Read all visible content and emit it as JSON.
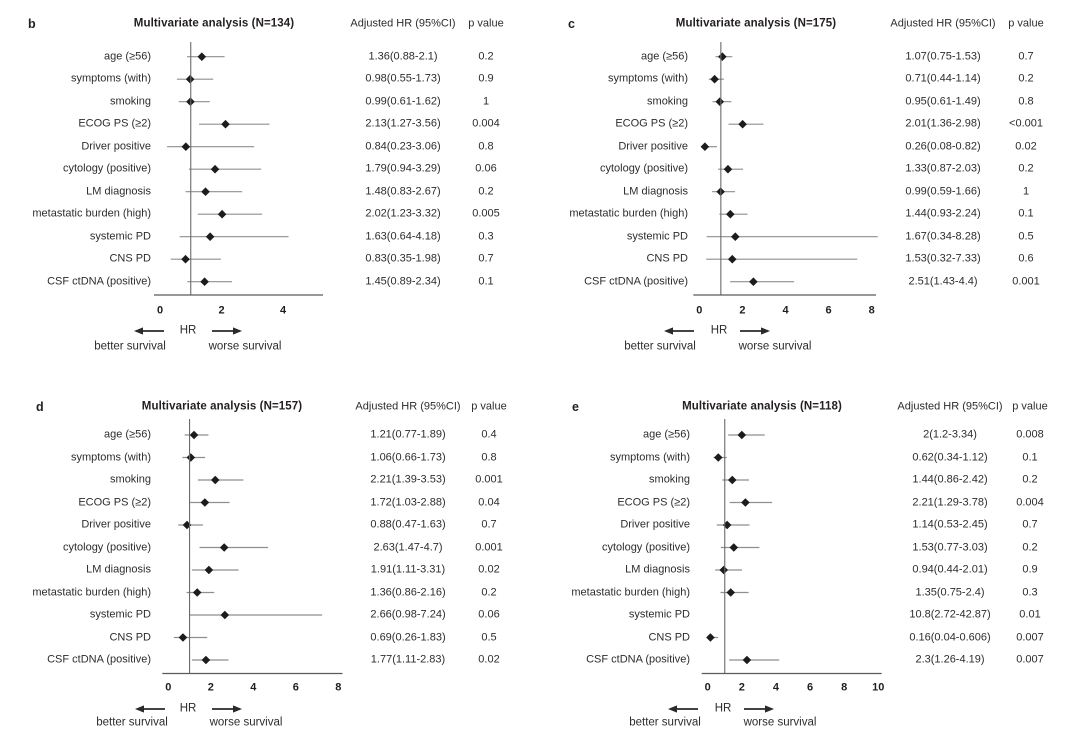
{
  "colors": {
    "background": "#ffffff",
    "ink": "#231f20",
    "ci_line": "#8f8f8f",
    "axis_line": "#5a5a5a",
    "ref_line": "#6a6a6a",
    "marker": "#1c1c1c",
    "arrow": "#2a2a2a"
  },
  "chart_data": [
    {
      "type": "forest",
      "panel_letter": "b",
      "title": "Multivariate analysis (N=134)",
      "hr_header": "Adjusted HR (95%CI)",
      "p_header": "p value",
      "xlabel": "HR",
      "arrow_left_label": "better survival",
      "arrow_right_label": "worse survival",
      "ref_line": 1,
      "x_ticks": [
        0,
        2,
        4
      ],
      "xlim": [
        0,
        5.3
      ],
      "rows": [
        {
          "label": "age (≥56)",
          "hr": 1.36,
          "lo": 0.88,
          "hi": 2.1,
          "hr_text": "1.36(0.88-2.1)",
          "p": "0.2"
        },
        {
          "label": "symptoms (with)",
          "hr": 0.98,
          "lo": 0.55,
          "hi": 1.73,
          "hr_text": "0.98(0.55-1.73)",
          "p": "0.9"
        },
        {
          "label": "smoking",
          "hr": 0.99,
          "lo": 0.61,
          "hi": 1.62,
          "hr_text": "0.99(0.61-1.62)",
          "p": "1"
        },
        {
          "label": "ECOG PS (≥2)",
          "hr": 2.13,
          "lo": 1.27,
          "hi": 3.56,
          "hr_text": "2.13(1.27-3.56)",
          "p": "0.004"
        },
        {
          "label": "Driver positive",
          "hr": 0.84,
          "lo": 0.23,
          "hi": 3.06,
          "hr_text": "0.84(0.23-3.06)",
          "p": "0.8"
        },
        {
          "label": "cytology (positive)",
          "hr": 1.79,
          "lo": 0.94,
          "hi": 3.29,
          "hr_text": "1.79(0.94-3.29)",
          "p": "0.06"
        },
        {
          "label": "LM diagnosis",
          "hr": 1.48,
          "lo": 0.83,
          "hi": 2.67,
          "hr_text": "1.48(0.83-2.67)",
          "p": "0.2"
        },
        {
          "label": "metastatic burden (high)",
          "hr": 2.02,
          "lo": 1.23,
          "hi": 3.32,
          "hr_text": "2.02(1.23-3.32)",
          "p": "0.005"
        },
        {
          "label": "systemic PD",
          "hr": 1.63,
          "lo": 0.64,
          "hi": 4.18,
          "hr_text": "1.63(0.64-4.18)",
          "p": "0.3"
        },
        {
          "label": "CNS PD",
          "hr": 0.83,
          "lo": 0.35,
          "hi": 1.98,
          "hr_text": "0.83(0.35-1.98)",
          "p": "0.7"
        },
        {
          "label": "CSF ctDNA (positive)",
          "hr": 1.45,
          "lo": 0.89,
          "hi": 2.34,
          "hr_text": "1.45(0.89-2.34)",
          "p": "0.1"
        }
      ]
    },
    {
      "type": "forest",
      "panel_letter": "c",
      "title": "Multivariate analysis (N=175)",
      "hr_header": "Adjusted HR (95%CI)",
      "p_header": "p value",
      "xlabel": "HR",
      "arrow_left_label": "better survival",
      "arrow_right_label": "worse survival",
      "ref_line": 1,
      "x_ticks": [
        0,
        2,
        4,
        6,
        8
      ],
      "xlim": [
        0,
        8.2
      ],
      "rows": [
        {
          "label": "age (≥56)",
          "hr": 1.07,
          "lo": 0.75,
          "hi": 1.53,
          "hr_text": "1.07(0.75-1.53)",
          "p": "0.7"
        },
        {
          "label": "symptoms (with)",
          "hr": 0.71,
          "lo": 0.44,
          "hi": 1.14,
          "hr_text": "0.71(0.44-1.14)",
          "p": "0.2"
        },
        {
          "label": "smoking",
          "hr": 0.95,
          "lo": 0.61,
          "hi": 1.49,
          "hr_text": "0.95(0.61-1.49)",
          "p": "0.8"
        },
        {
          "label": "ECOG PS (≥2)",
          "hr": 2.01,
          "lo": 1.36,
          "hi": 2.98,
          "hr_text": "2.01(1.36-2.98)",
          "p": "<0.001"
        },
        {
          "label": "Driver positive",
          "hr": 0.26,
          "lo": 0.08,
          "hi": 0.82,
          "hr_text": "0.26(0.08-0.82)",
          "p": "0.02"
        },
        {
          "label": "cytology (positive)",
          "hr": 1.33,
          "lo": 0.87,
          "hi": 2.03,
          "hr_text": "1.33(0.87-2.03)",
          "p": "0.2"
        },
        {
          "label": "LM diagnosis",
          "hr": 0.99,
          "lo": 0.59,
          "hi": 1.66,
          "hr_text": "0.99(0.59-1.66)",
          "p": "1"
        },
        {
          "label": "metastatic burden (high)",
          "hr": 1.44,
          "lo": 0.93,
          "hi": 2.24,
          "hr_text": "1.44(0.93-2.24)",
          "p": "0.1"
        },
        {
          "label": "systemic PD",
          "hr": 1.67,
          "lo": 0.34,
          "hi": 8.28,
          "hr_text": "1.67(0.34-8.28)",
          "p": "0.5"
        },
        {
          "label": "CNS PD",
          "hr": 1.53,
          "lo": 0.32,
          "hi": 7.33,
          "hr_text": "1.53(0.32-7.33)",
          "p": "0.6"
        },
        {
          "label": "CSF ctDNA (positive)",
          "hr": 2.51,
          "lo": 1.43,
          "hi": 4.4,
          "hr_text": "2.51(1.43-4.4)",
          "p": "0.001"
        }
      ]
    },
    {
      "type": "forest",
      "panel_letter": "d",
      "title": "Multivariate analysis (N=157)",
      "hr_header": "Adjusted HR (95%CI)",
      "p_header": "p value",
      "xlabel": "HR",
      "arrow_left_label": "better survival",
      "arrow_right_label": "worse survival",
      "ref_line": 1,
      "x_ticks": [
        0,
        2,
        4,
        6,
        8
      ],
      "xlim": [
        0,
        8.2
      ],
      "rows": [
        {
          "label": "age (≥56)",
          "hr": 1.21,
          "lo": 0.77,
          "hi": 1.89,
          "hr_text": "1.21(0.77-1.89)",
          "p": "0.4"
        },
        {
          "label": "symptoms (with)",
          "hr": 1.06,
          "lo": 0.66,
          "hi": 1.73,
          "hr_text": "1.06(0.66-1.73)",
          "p": "0.8"
        },
        {
          "label": "smoking",
          "hr": 2.21,
          "lo": 1.39,
          "hi": 3.53,
          "hr_text": "2.21(1.39-3.53)",
          "p": "0.001"
        },
        {
          "label": "ECOG PS (≥2)",
          "hr": 1.72,
          "lo": 1.03,
          "hi": 2.88,
          "hr_text": "1.72(1.03-2.88)",
          "p": "0.04"
        },
        {
          "label": "Driver positive",
          "hr": 0.88,
          "lo": 0.47,
          "hi": 1.63,
          "hr_text": "0.88(0.47-1.63)",
          "p": "0.7"
        },
        {
          "label": "cytology (positive)",
          "hr": 2.63,
          "lo": 1.47,
          "hi": 4.7,
          "hr_text": "2.63(1.47-4.7)",
          "p": "0.001"
        },
        {
          "label": "LM diagnosis",
          "hr": 1.91,
          "lo": 1.11,
          "hi": 3.31,
          "hr_text": "1.91(1.11-3.31)",
          "p": "0.02"
        },
        {
          "label": "metastatic burden (high)",
          "hr": 1.36,
          "lo": 0.86,
          "hi": 2.16,
          "hr_text": "1.36(0.86-2.16)",
          "p": "0.2"
        },
        {
          "label": "systemic PD",
          "hr": 2.66,
          "lo": 0.98,
          "hi": 7.24,
          "hr_text": "2.66(0.98-7.24)",
          "p": "0.06"
        },
        {
          "label": "CNS PD",
          "hr": 0.69,
          "lo": 0.26,
          "hi": 1.83,
          "hr_text": "0.69(0.26-1.83)",
          "p": "0.5"
        },
        {
          "label": "CSF ctDNA (positive)",
          "hr": 1.77,
          "lo": 1.11,
          "hi": 2.83,
          "hr_text": "1.77(1.11-2.83)",
          "p": "0.02"
        }
      ]
    },
    {
      "type": "forest",
      "panel_letter": "e",
      "title": "Multivariate analysis (N=118)",
      "hr_header": "Adjusted HR (95%CI)",
      "p_header": "p value",
      "xlabel": "HR",
      "arrow_left_label": "better survival",
      "arrow_right_label": "worse survival",
      "ref_line": 1,
      "x_ticks": [
        0,
        2,
        4,
        6,
        8,
        10
      ],
      "xlim": [
        0,
        10.2
      ],
      "rows": [
        {
          "label": "age (≥56)",
          "hr": 2,
          "lo": 1.2,
          "hi": 3.34,
          "hr_text": "2(1.2-3.34)",
          "p": "0.008"
        },
        {
          "label": "symptoms (with)",
          "hr": 0.62,
          "lo": 0.34,
          "hi": 1.12,
          "hr_text": "0.62(0.34-1.12)",
          "p": "0.1"
        },
        {
          "label": "smoking",
          "hr": 1.44,
          "lo": 0.86,
          "hi": 2.42,
          "hr_text": "1.44(0.86-2.42)",
          "p": "0.2"
        },
        {
          "label": "ECOG PS (≥2)",
          "hr": 2.21,
          "lo": 1.29,
          "hi": 3.78,
          "hr_text": "2.21(1.29-3.78)",
          "p": "0.004"
        },
        {
          "label": "Driver positive",
          "hr": 1.14,
          "lo": 0.53,
          "hi": 2.45,
          "hr_text": "1.14(0.53-2.45)",
          "p": "0.7"
        },
        {
          "label": "cytology (positive)",
          "hr": 1.53,
          "lo": 0.77,
          "hi": 3.03,
          "hr_text": "1.53(0.77-3.03)",
          "p": "0.2"
        },
        {
          "label": "LM diagnosis",
          "hr": 0.94,
          "lo": 0.44,
          "hi": 2.01,
          "hr_text": "0.94(0.44-2.01)",
          "p": "0.9"
        },
        {
          "label": "metastatic burden (high)",
          "hr": 1.35,
          "lo": 0.75,
          "hi": 2.4,
          "hr_text": "1.35(0.75-2.4)",
          "p": "0.3"
        },
        {
          "label": "systemic PD",
          "hr": 10.8,
          "lo": 2.72,
          "hi": 42.87,
          "hr_text": "10.8(2.72-42.87)",
          "p": "0.01",
          "off_scale": true
        },
        {
          "label": "CNS PD",
          "hr": 0.16,
          "lo": 0.04,
          "hi": 0.606,
          "hr_text": "0.16(0.04-0.606)",
          "p": "0.007"
        },
        {
          "label": "CSF ctDNA (positive)",
          "hr": 2.3,
          "lo": 1.26,
          "hi": 4.19,
          "hr_text": "2.3(1.26-4.19)",
          "p": "0.007"
        }
      ]
    }
  ]
}
